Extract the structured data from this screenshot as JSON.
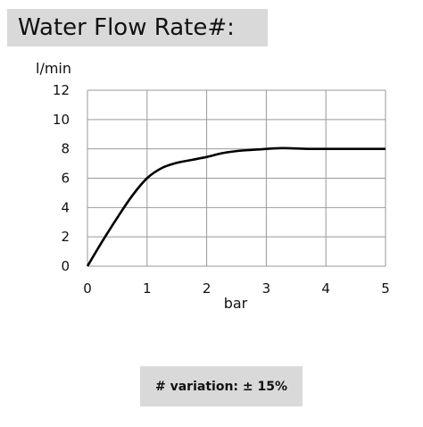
{
  "title": "Water Flow Rate#:",
  "footnote": "# variation: ± 15%",
  "chart_data": {
    "type": "line",
    "xlabel": "bar",
    "ylabel": "l/min",
    "xlim": [
      0,
      5
    ],
    "ylim": [
      0,
      12
    ],
    "x_ticks": [
      0,
      1,
      2,
      3,
      4,
      5
    ],
    "y_ticks": [
      0,
      2,
      4,
      6,
      8,
      10,
      12
    ],
    "grid": true,
    "line_color": "#000000",
    "series": [
      {
        "x": [
          0,
          0.25,
          0.5,
          0.75,
          1.0,
          1.25,
          1.5,
          1.75,
          2.0,
          2.25,
          2.5,
          2.75,
          3.0,
          3.25,
          3.5,
          3.75,
          4.0,
          4.5,
          5.0
        ],
        "values": [
          0,
          1.7,
          3.3,
          4.8,
          6.0,
          6.7,
          7.05,
          7.25,
          7.45,
          7.7,
          7.85,
          7.93,
          8.0,
          8.05,
          8.03,
          8.0,
          8.0,
          8.0,
          8.0
        ]
      }
    ]
  }
}
